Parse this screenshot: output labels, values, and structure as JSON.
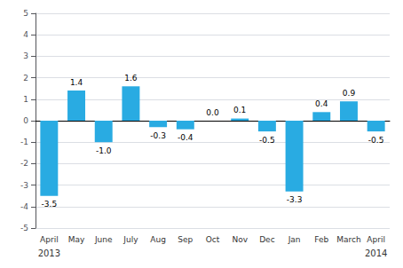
{
  "chart_data": {
    "type": "bar",
    "categories": [
      "April",
      "May",
      "June",
      "July",
      "Aug",
      "Sep",
      "Oct",
      "Nov",
      "Dec",
      "Jan",
      "Feb",
      "March",
      "April"
    ],
    "values": [
      -3.5,
      1.4,
      -1.0,
      1.6,
      -0.3,
      -0.4,
      0.0,
      0.1,
      -0.5,
      -3.3,
      0.4,
      0.9,
      -0.5
    ],
    "value_labels": [
      "-3.5",
      "1.4",
      "-1.0",
      "1.6",
      "-0.3",
      "-0.4",
      "0.0",
      "0.1",
      "-0.5",
      "-3.3",
      "0.4",
      "0.9",
      "-0.5"
    ],
    "data_labels": true,
    "color": "#29abe2",
    "ylim": [
      -5,
      5
    ],
    "yticks": [
      -5,
      -4,
      -3,
      -2,
      -1,
      0,
      1,
      2,
      3,
      4,
      5
    ],
    "grid": true,
    "annotations": [
      {
        "text": "2013",
        "x": 0
      },
      {
        "text": "2014",
        "x": 12
      }
    ]
  }
}
